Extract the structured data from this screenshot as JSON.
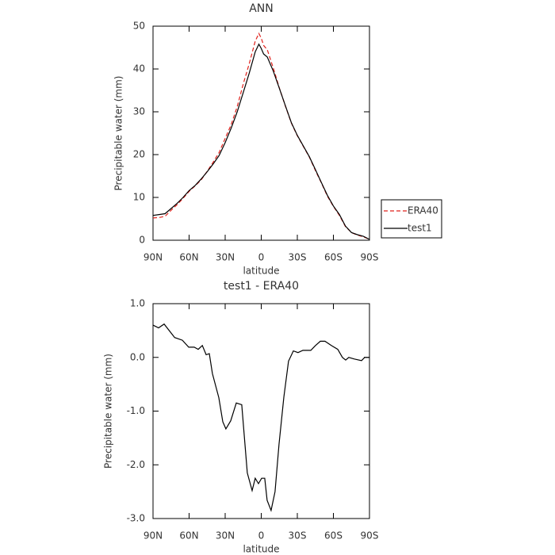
{
  "chart_data": [
    {
      "type": "line",
      "title": "ANN",
      "xlabel": "latitude",
      "ylabel": "Precipitable water (mm)",
      "x": [
        90,
        85,
        80,
        75,
        70,
        65,
        60,
        55,
        50,
        45,
        40,
        35,
        30,
        25,
        20,
        15,
        10,
        5,
        2,
        0,
        -2,
        -5,
        -10,
        -15,
        -20,
        -25,
        -30,
        -35,
        -40,
        -45,
        -50,
        -55,
        -60,
        -65,
        -70,
        -75,
        -80,
        -85,
        -90
      ],
      "series": [
        {
          "name": "ERA40",
          "color": "#e0201b",
          "dash": true,
          "values": [
            5.2,
            5.3,
            5.6,
            7.0,
            8.3,
            9.8,
            11.4,
            12.7,
            14.1,
            16.1,
            18.2,
            20.5,
            23.8,
            27.0,
            31.2,
            36.5,
            41.2,
            46.5,
            48.3,
            47.2,
            45.5,
            44.5,
            40.2,
            35.6,
            31.4,
            27.4,
            24.4,
            21.9,
            19.4,
            16.3,
            13.4,
            10.3,
            7.9,
            5.8,
            3.2,
            1.8,
            1.2,
            0.8,
            0.2
          ]
        },
        {
          "name": "test1",
          "color": "#000000",
          "dash": false,
          "values": [
            5.8,
            6.0,
            6.2,
            7.4,
            8.6,
            10.0,
            11.6,
            12.8,
            14.3,
            16.0,
            17.8,
            19.8,
            22.8,
            26.2,
            30,
            34.5,
            39,
            44,
            45.8,
            44.8,
            43.5,
            42.8,
            39.5,
            35.5,
            31.5,
            27.5,
            24.5,
            22,
            19.5,
            16.5,
            13.5,
            10.5,
            8,
            6,
            3.3,
            1.8,
            1.3,
            0.9,
            0.2
          ]
        }
      ],
      "xlim": [
        90,
        -90
      ],
      "xticks": [
        {
          "value": 90,
          "label": "90N"
        },
        {
          "value": 60,
          "label": "60N"
        },
        {
          "value": 30,
          "label": "30N"
        },
        0,
        {
          "value": -30,
          "label": "30S"
        },
        {
          "value": -60,
          "label": "60S"
        },
        {
          "value": -90,
          "label": "90S"
        }
      ],
      "ylim": [
        0,
        50
      ],
      "yticks": [
        0,
        10,
        20,
        30,
        40,
        50
      ],
      "legend": "right"
    },
    {
      "type": "line",
      "title": "test1 - ERA40",
      "xlabel": "latitude",
      "ylabel": "Precipitable water (mm)",
      "x": [
        90,
        85.4,
        80.8,
        72,
        65.6,
        60.3,
        55.7,
        52.4,
        49,
        45.8,
        43.2,
        40.6,
        35.3,
        32,
        29.4,
        25.4,
        20.8,
        16.2,
        11.6,
        7.6,
        5,
        2.3,
        -0.3,
        -2.9,
        -4.9,
        -8.2,
        -11.5,
        -14.8,
        -18.8,
        -22.7,
        -26.7,
        -30.6,
        -34.6,
        -41.2,
        -45.1,
        -49.1,
        -53,
        -58.3,
        -63.6,
        -67.5,
        -70.2,
        -72.8,
        -77.4,
        -83.4,
        -86,
        -90
      ],
      "values": [
        0.6,
        0.55,
        0.62,
        0.37,
        0.32,
        0.19,
        0.19,
        0.15,
        0.22,
        0.05,
        0.07,
        -0.3,
        -0.75,
        -1.2,
        -1.33,
        -1.18,
        -0.85,
        -0.88,
        -2.15,
        -2.48,
        -2.25,
        -2.35,
        -2.25,
        -2.25,
        -2.66,
        -2.85,
        -2.5,
        -1.62,
        -0.74,
        -0.07,
        0.12,
        0.09,
        0.13,
        0.13,
        0.22,
        0.3,
        0.3,
        0.22,
        0.15,
        0.0,
        -0.05,
        0.0,
        -0.03,
        -0.06,
        0.0,
        0.0
      ],
      "color": "#000000",
      "xlim": [
        90,
        -90
      ],
      "xticks": [
        {
          "value": 90,
          "label": "90N"
        },
        {
          "value": 60,
          "label": "60N"
        },
        {
          "value": 30,
          "label": "30N"
        },
        0,
        {
          "value": -30,
          "label": "30S"
        },
        {
          "value": -60,
          "label": "60S"
        },
        {
          "value": -90,
          "label": "90S"
        }
      ],
      "ylim": [
        -3,
        1
      ],
      "yticks": [
        {
          "value": -3,
          "label": "-3.0"
        },
        {
          "value": -2,
          "label": "-2.0"
        },
        {
          "value": -1,
          "label": "-1.0"
        },
        {
          "value": 0,
          "label": "0.0"
        },
        {
          "value": 1,
          "label": "1.0"
        }
      ]
    }
  ]
}
